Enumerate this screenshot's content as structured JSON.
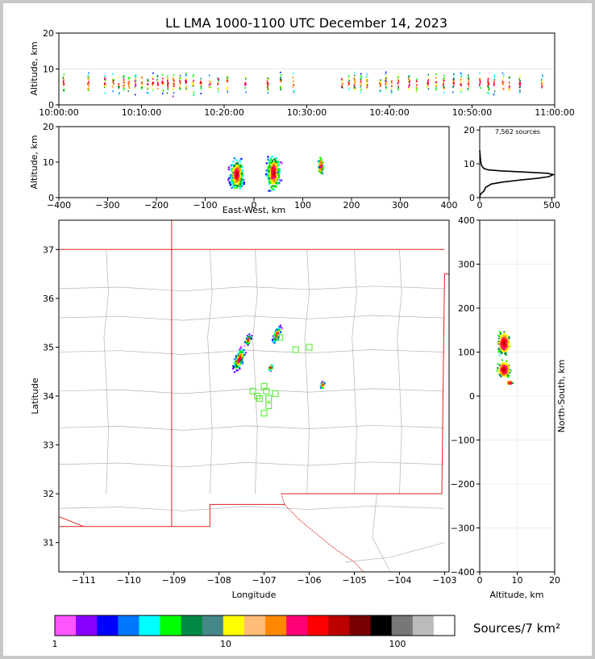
{
  "title": "LL LMA 1000-1100 UTC December 14, 2023",
  "colors": {
    "border": "#c0c0c0",
    "state_line": "#e02020",
    "county_line": "#b4b4b4",
    "marker": "#66ee44"
  },
  "chart_data": [
    {
      "id": "time-height",
      "type": "scatter",
      "ylabel": "Altitude, km",
      "ylim": [
        0,
        20
      ],
      "yticks": [
        "0",
        "10",
        "20"
      ],
      "xticks": [
        "10:00:00",
        "10:10:00",
        "10:20:00",
        "10:30:00",
        "10:40:00",
        "10:50:00",
        "11:00:00"
      ],
      "xlim_minutes": [
        0,
        60
      ],
      "activity_minutes": [
        0.5,
        3.5,
        5.5,
        6.5,
        7.2,
        7.8,
        8.4,
        9.2,
        10.0,
        10.7,
        11.3,
        11.9,
        12.5,
        13.1,
        13.8,
        14.6,
        15.3,
        16.2,
        17.1,
        18.2,
        19.2,
        20.3,
        22.5,
        25.2,
        26.8,
        28.3,
        34.2,
        35.0,
        35.7,
        36.5,
        37.2,
        38.8,
        39.5,
        40.2,
        41.0,
        42.3,
        43.2,
        44.6,
        45.6,
        46.5,
        47.7,
        48.6,
        49.5,
        50.9,
        51.9,
        52.6,
        53.7,
        54.4,
        55.7,
        58.4
      ],
      "core_altitude_km": 6
    },
    {
      "id": "ew-altitude",
      "type": "scatter",
      "xlabel": "East-West, km",
      "ylabel": "Altitude, km",
      "xlim": [
        -400,
        400
      ],
      "ylim": [
        0,
        20
      ],
      "xticks": [
        "−400",
        "−300",
        "−200",
        "−100",
        "0",
        "100",
        "200",
        "300",
        "400"
      ],
      "yticks": [
        "0",
        "10",
        "20"
      ],
      "clusters": [
        {
          "x": -35,
          "z": 6.5,
          "width_km": 40,
          "height_km": 14,
          "n": 320
        },
        {
          "x": 40,
          "z": 7,
          "width_km": 40,
          "height_km": 16,
          "n": 300
        },
        {
          "x": 137,
          "z": 9,
          "width_km": 16,
          "height_km": 8,
          "n": 90
        }
      ]
    },
    {
      "id": "altitude-histogram",
      "type": "line",
      "annotation": "7,562 sources",
      "xlim": [
        0,
        520
      ],
      "ylim": [
        0,
        21
      ],
      "xticks": [
        "0",
        "500"
      ],
      "yticks": [
        "0",
        "10",
        "20"
      ],
      "profile": [
        [
          0,
          0
        ],
        [
          5,
          1
        ],
        [
          30,
          2
        ],
        [
          35,
          2.5
        ],
        [
          40,
          3
        ],
        [
          80,
          4
        ],
        [
          160,
          4.6
        ],
        [
          280,
          5.2
        ],
        [
          400,
          5.7
        ],
        [
          480,
          6.2
        ],
        [
          510,
          6.8
        ],
        [
          470,
          7.2
        ],
        [
          300,
          7.6
        ],
        [
          150,
          7.9
        ],
        [
          60,
          8.2
        ],
        [
          30,
          8.6
        ],
        [
          15,
          9.3
        ],
        [
          10,
          10
        ],
        [
          6,
          11
        ],
        [
          4,
          12
        ],
        [
          2,
          13
        ],
        [
          0,
          14
        ]
      ]
    },
    {
      "id": "plan-view",
      "type": "scatter",
      "xlabel": "Longitude",
      "ylabel": "Latitude",
      "xlim": [
        -111.55,
        -102.9
      ],
      "ylim": [
        30.4,
        37.6
      ],
      "xticks": [
        "−111",
        "−110",
        "−109",
        "−108",
        "−107",
        "−106",
        "−105",
        "−104",
        "−103"
      ],
      "yticks": [
        "31",
        "32",
        "33",
        "34",
        "35",
        "36",
        "37"
      ],
      "stations": [
        [
          -107.15,
          34.0
        ],
        [
          -107.1,
          33.95
        ],
        [
          -107.25,
          34.1
        ],
        [
          -107.0,
          34.2
        ],
        [
          -106.95,
          34.1
        ],
        [
          -106.9,
          33.8
        ],
        [
          -107.0,
          33.65
        ],
        [
          -106.9,
          33.95
        ],
        [
          -106.75,
          34.05
        ],
        [
          -106.3,
          34.95
        ],
        [
          -106.0,
          35.0
        ],
        [
          -106.65,
          35.2
        ]
      ],
      "clusters": [
        {
          "lon": -107.55,
          "lat": 34.75,
          "w": 0.25,
          "h": 0.6,
          "n": 260
        },
        {
          "lon": -106.72,
          "lat": 35.25,
          "w": 0.18,
          "h": 0.45,
          "n": 220
        },
        {
          "lon": -107.35,
          "lat": 35.15,
          "w": 0.15,
          "h": 0.3,
          "n": 80
        },
        {
          "lon": -106.85,
          "lat": 34.58,
          "w": 0.12,
          "h": 0.18,
          "n": 50
        },
        {
          "lon": -105.7,
          "lat": 34.22,
          "w": 0.12,
          "h": 0.2,
          "n": 40
        }
      ]
    },
    {
      "id": "altitude-ns",
      "type": "scatter",
      "xlabel": "Altitude, km",
      "ylabel": "North-South, km",
      "xlim": [
        0,
        20
      ],
      "ylim": [
        -400,
        400
      ],
      "xticks": [
        "0",
        "10",
        "20"
      ],
      "yticks": [
        "400",
        "300",
        "200",
        "100",
        "0",
        "−100",
        "−200",
        "−300",
        "−400"
      ],
      "clusters": [
        {
          "z": 6.5,
          "y": 120,
          "w": 3.5,
          "h": 55,
          "n": 260
        },
        {
          "z": 6.5,
          "y": 60,
          "w": 3.5,
          "h": 40,
          "n": 240
        },
        {
          "z": 8,
          "y": 30,
          "w": 2,
          "h": 10,
          "n": 40
        }
      ]
    }
  ],
  "colorbar": {
    "label": "Sources/7 km²",
    "tick_labels": [
      "1",
      "10",
      "100"
    ],
    "colors": [
      "#ff55ff",
      "#8800ff",
      "#0000ff",
      "#0077ff",
      "#00ffff",
      "#00ff00",
      "#008844",
      "#448888",
      "#ffff00",
      "#ffbb77",
      "#ff8800",
      "#ff0077",
      "#ff0000",
      "#bb0000",
      "#770000",
      "#000000",
      "#777777",
      "#bbbbbb",
      "#ffffff"
    ]
  }
}
